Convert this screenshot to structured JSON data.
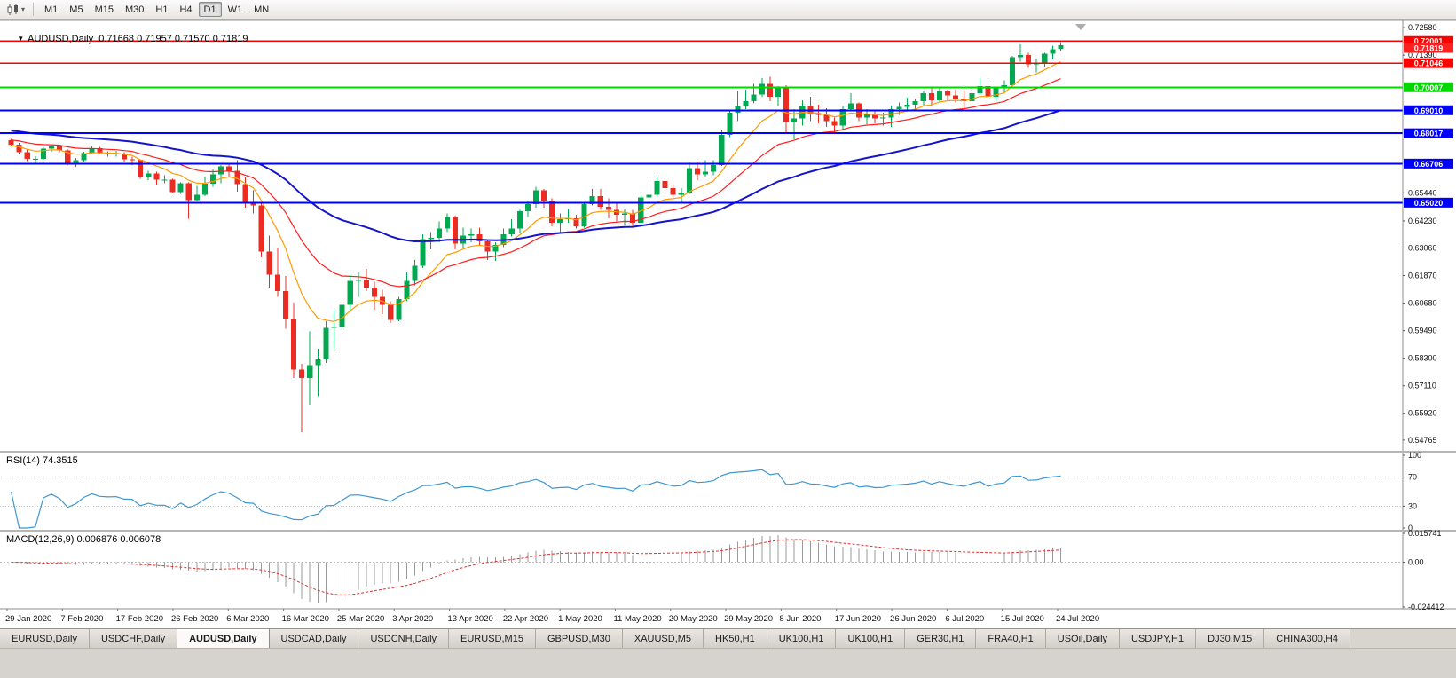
{
  "toolbar": {
    "dropdown_caret": "▾",
    "timeframes": [
      {
        "label": "M1",
        "active": false
      },
      {
        "label": "M5",
        "active": false
      },
      {
        "label": "M15",
        "active": false
      },
      {
        "label": "M30",
        "active": false
      },
      {
        "label": "H1",
        "active": false
      },
      {
        "label": "H4",
        "active": false
      },
      {
        "label": "D1",
        "active": true
      },
      {
        "label": "W1",
        "active": false
      },
      {
        "label": "MN",
        "active": false
      }
    ]
  },
  "chart": {
    "collapse_icon": "▼",
    "title": "AUDUSD,Daily",
    "ohlc_text": "0.71668 0.71957 0.71570 0.71819"
  },
  "rsi": {
    "label": "RSI(14) 74.3515"
  },
  "macd": {
    "label": "MACD(12,26,9) 0.006876 0.006078"
  },
  "tabs": [
    {
      "label": "EURUSD,Daily",
      "active": false
    },
    {
      "label": "USDCHF,Daily",
      "active": false
    },
    {
      "label": "AUDUSD,Daily",
      "active": true
    },
    {
      "label": "USDCAD,Daily",
      "active": false
    },
    {
      "label": "USDCNH,Daily",
      "active": false
    },
    {
      "label": "EURUSD,M15",
      "active": false
    },
    {
      "label": "GBPUSD,M30",
      "active": false
    },
    {
      "label": "XAUUSD,M5",
      "active": false
    },
    {
      "label": "HK50,H1",
      "active": false
    },
    {
      "label": "UK100,H1",
      "active": false
    },
    {
      "label": "UK100,H1",
      "active": false
    },
    {
      "label": "GER30,H1",
      "active": false
    },
    {
      "label": "FRA40,H1",
      "active": false
    },
    {
      "label": "USOil,Daily",
      "active": false
    },
    {
      "label": "USDJPY,H1",
      "active": false
    },
    {
      "label": "DJ30,M15",
      "active": false
    },
    {
      "label": "CHINA300,H4",
      "active": false
    }
  ],
  "chart_data": {
    "type": "candlestick",
    "symbol": "AUDUSD",
    "period": "Daily",
    "last_ohlc": {
      "open": 0.71668,
      "high": 0.71957,
      "low": 0.7157,
      "close": 0.71819
    },
    "y_range": [
      0.543,
      0.7293
    ],
    "up_color": "#00A850",
    "down_color": "#EB2C23",
    "price_axis_labels": [
      "0.72580",
      "0.71390",
      "0.65440",
      "0.64230",
      "0.63060",
      "0.61870",
      "0.60680",
      "0.59490",
      "0.58300",
      "0.57110",
      "0.55920",
      "0.54765"
    ],
    "x_labels": [
      "29 Jan 2020",
      "7 Feb 2020",
      "17 Feb 2020",
      "26 Feb 2020",
      "6 Mar 2020",
      "16 Mar 2020",
      "25 Mar 2020",
      "3 Apr 2020",
      "13 Apr 2020",
      "22 Apr 2020",
      "1 May 2020",
      "11 May 2020",
      "20 May 2020",
      "29 May 2020",
      "8 Jun 2020",
      "17 Jun 2020",
      "26 Jun 2020",
      "6 Jul 2020",
      "15 Jul 2020",
      "24 Jul 2020"
    ],
    "ohlc": [
      [
        0.6772,
        0.6778,
        0.6745,
        0.6753
      ],
      [
        0.6753,
        0.676,
        0.671,
        0.6719
      ],
      [
        0.6719,
        0.6733,
        0.6682,
        0.6691
      ],
      [
        0.6691,
        0.6703,
        0.667,
        0.6692
      ],
      [
        0.6692,
        0.674,
        0.6688,
        0.6735
      ],
      [
        0.6735,
        0.6752,
        0.6722,
        0.6745
      ],
      [
        0.6745,
        0.675,
        0.672,
        0.6728
      ],
      [
        0.6728,
        0.6733,
        0.6662,
        0.6671
      ],
      [
        0.6671,
        0.6695,
        0.6657,
        0.6685
      ],
      [
        0.6685,
        0.6722,
        0.6678,
        0.6716
      ],
      [
        0.6716,
        0.6745,
        0.671,
        0.6738
      ],
      [
        0.6738,
        0.6742,
        0.671,
        0.6717
      ],
      [
        0.6717,
        0.6723,
        0.67,
        0.6712
      ],
      [
        0.6712,
        0.6725,
        0.67,
        0.6714
      ],
      [
        0.6714,
        0.672,
        0.668,
        0.669
      ],
      [
        0.669,
        0.67,
        0.6665,
        0.6688
      ],
      [
        0.6688,
        0.669,
        0.6605,
        0.6611
      ],
      [
        0.6611,
        0.664,
        0.66,
        0.6627
      ],
      [
        0.6627,
        0.6635,
        0.658,
        0.6601
      ],
      [
        0.6601,
        0.662,
        0.6585,
        0.6601
      ],
      [
        0.6601,
        0.6605,
        0.6542,
        0.6548
      ],
      [
        0.6548,
        0.659,
        0.654,
        0.6586
      ],
      [
        0.6586,
        0.659,
        0.6433,
        0.6513
      ],
      [
        0.6513,
        0.6575,
        0.651,
        0.6536
      ],
      [
        0.6536,
        0.661,
        0.653,
        0.6583
      ],
      [
        0.6583,
        0.6645,
        0.657,
        0.6625
      ],
      [
        0.6625,
        0.6665,
        0.6585,
        0.6659
      ],
      [
        0.6659,
        0.667,
        0.661,
        0.6639
      ],
      [
        0.6639,
        0.6685,
        0.655,
        0.6581
      ],
      [
        0.6581,
        0.6615,
        0.648,
        0.65
      ],
      [
        0.65,
        0.6555,
        0.6455,
        0.6489
      ],
      [
        0.6489,
        0.65,
        0.6265,
        0.629
      ],
      [
        0.629,
        0.636,
        0.6135,
        0.619
      ],
      [
        0.619,
        0.6305,
        0.6095,
        0.612
      ],
      [
        0.612,
        0.6185,
        0.5958,
        0.5998
      ],
      [
        0.5998,
        0.607,
        0.5745,
        0.578
      ],
      [
        0.578,
        0.5805,
        0.551,
        0.5745
      ],
      [
        0.5745,
        0.5945,
        0.563,
        0.58
      ],
      [
        0.58,
        0.587,
        0.5665,
        0.5825
      ],
      [
        0.5825,
        0.599,
        0.581,
        0.596
      ],
      [
        0.596,
        0.6035,
        0.587,
        0.5965
      ],
      [
        0.5965,
        0.608,
        0.5945,
        0.606
      ],
      [
        0.606,
        0.6195,
        0.603,
        0.6165
      ],
      [
        0.6165,
        0.62,
        0.6095,
        0.617
      ],
      [
        0.617,
        0.6215,
        0.612,
        0.6135
      ],
      [
        0.6135,
        0.616,
        0.604,
        0.6095
      ],
      [
        0.6095,
        0.6125,
        0.602,
        0.606
      ],
      [
        0.606,
        0.6075,
        0.5982,
        0.5995
      ],
      [
        0.5995,
        0.6095,
        0.599,
        0.6085
      ],
      [
        0.6085,
        0.62,
        0.6075,
        0.6165
      ],
      [
        0.6165,
        0.6255,
        0.6145,
        0.623
      ],
      [
        0.623,
        0.6365,
        0.622,
        0.6345
      ],
      [
        0.6345,
        0.6375,
        0.63,
        0.635
      ],
      [
        0.635,
        0.642,
        0.633,
        0.639
      ],
      [
        0.639,
        0.6455,
        0.6375,
        0.644
      ],
      [
        0.644,
        0.6445,
        0.63,
        0.6325
      ],
      [
        0.6325,
        0.6395,
        0.6305,
        0.636
      ],
      [
        0.636,
        0.639,
        0.633,
        0.6365
      ],
      [
        0.6365,
        0.6395,
        0.632,
        0.6335
      ],
      [
        0.6335,
        0.634,
        0.6255,
        0.629
      ],
      [
        0.629,
        0.633,
        0.625,
        0.632
      ],
      [
        0.632,
        0.639,
        0.631,
        0.6365
      ],
      [
        0.6365,
        0.643,
        0.6355,
        0.639
      ],
      [
        0.639,
        0.647,
        0.637,
        0.6465
      ],
      [
        0.6465,
        0.651,
        0.644,
        0.6495
      ],
      [
        0.6495,
        0.657,
        0.648,
        0.6555
      ],
      [
        0.6555,
        0.656,
        0.648,
        0.651
      ],
      [
        0.651,
        0.652,
        0.64,
        0.6415
      ],
      [
        0.6415,
        0.6455,
        0.6372,
        0.643
      ],
      [
        0.643,
        0.6475,
        0.6415,
        0.6435
      ],
      [
        0.6435,
        0.645,
        0.639,
        0.64
      ],
      [
        0.64,
        0.65,
        0.6395,
        0.6495
      ],
      [
        0.6495,
        0.656,
        0.649,
        0.653
      ],
      [
        0.653,
        0.656,
        0.647,
        0.6485
      ],
      [
        0.6485,
        0.652,
        0.6435,
        0.647
      ],
      [
        0.647,
        0.6505,
        0.642,
        0.645
      ],
      [
        0.645,
        0.6475,
        0.6405,
        0.6455
      ],
      [
        0.6455,
        0.647,
        0.6402,
        0.6415
      ],
      [
        0.6415,
        0.6535,
        0.6412,
        0.6525
      ],
      [
        0.6525,
        0.6585,
        0.6505,
        0.6535
      ],
      [
        0.6535,
        0.6615,
        0.653,
        0.6595
      ],
      [
        0.6595,
        0.66,
        0.6545,
        0.6565
      ],
      [
        0.6565,
        0.658,
        0.6525,
        0.6535
      ],
      [
        0.6535,
        0.6565,
        0.6505,
        0.6545
      ],
      [
        0.6545,
        0.6675,
        0.654,
        0.665
      ],
      [
        0.665,
        0.668,
        0.66,
        0.6625
      ],
      [
        0.6625,
        0.6685,
        0.6615,
        0.6635
      ],
      [
        0.6635,
        0.6685,
        0.662,
        0.6665
      ],
      [
        0.6665,
        0.6815,
        0.666,
        0.6795
      ],
      [
        0.6795,
        0.69,
        0.6785,
        0.689
      ],
      [
        0.689,
        0.6985,
        0.6855,
        0.692
      ],
      [
        0.692,
        0.699,
        0.6905,
        0.694
      ],
      [
        0.694,
        0.7015,
        0.693,
        0.697
      ],
      [
        0.697,
        0.704,
        0.696,
        0.7015
      ],
      [
        0.7015,
        0.7045,
        0.694,
        0.696
      ],
      [
        0.696,
        0.7005,
        0.692,
        0.7
      ],
      [
        0.7,
        0.701,
        0.68,
        0.685
      ],
      [
        0.685,
        0.6905,
        0.6775,
        0.6865
      ],
      [
        0.6865,
        0.6945,
        0.6835,
        0.692
      ],
      [
        0.692,
        0.696,
        0.6855,
        0.6885
      ],
      [
        0.6885,
        0.6925,
        0.6845,
        0.688
      ],
      [
        0.688,
        0.691,
        0.683,
        0.6855
      ],
      [
        0.6855,
        0.687,
        0.6805,
        0.6835
      ],
      [
        0.6835,
        0.692,
        0.682,
        0.6905
      ],
      [
        0.6905,
        0.6975,
        0.69,
        0.693
      ],
      [
        0.693,
        0.6935,
        0.6855,
        0.687
      ],
      [
        0.687,
        0.6905,
        0.684,
        0.6885
      ],
      [
        0.6885,
        0.69,
        0.6845,
        0.6865
      ],
      [
        0.6865,
        0.689,
        0.6835,
        0.687
      ],
      [
        0.687,
        0.692,
        0.683,
        0.6905
      ],
      [
        0.6905,
        0.6935,
        0.688,
        0.6915
      ],
      [
        0.6915,
        0.6955,
        0.69,
        0.6925
      ],
      [
        0.6925,
        0.695,
        0.6905,
        0.694
      ],
      [
        0.694,
        0.6985,
        0.692,
        0.6975
      ],
      [
        0.6975,
        0.6995,
        0.692,
        0.6945
      ],
      [
        0.6945,
        0.7,
        0.6935,
        0.6985
      ],
      [
        0.6985,
        0.699,
        0.6945,
        0.6965
      ],
      [
        0.6965,
        0.699,
        0.6935,
        0.695
      ],
      [
        0.695,
        0.699,
        0.69,
        0.694
      ],
      [
        0.694,
        0.699,
        0.693,
        0.6975
      ],
      [
        0.6975,
        0.704,
        0.697,
        0.7005
      ],
      [
        0.7005,
        0.702,
        0.6955,
        0.696
      ],
      [
        0.696,
        0.7,
        0.694,
        0.6995
      ],
      [
        0.6995,
        0.703,
        0.6975,
        0.701
      ],
      [
        0.701,
        0.7135,
        0.7005,
        0.713
      ],
      [
        0.713,
        0.7185,
        0.711,
        0.714
      ],
      [
        0.714,
        0.715,
        0.7085,
        0.71
      ],
      [
        0.71,
        0.7125,
        0.7065,
        0.7105
      ],
      [
        0.7105,
        0.715,
        0.709,
        0.7145
      ],
      [
        0.7145,
        0.718,
        0.712,
        0.7165
      ],
      [
        0.71668,
        0.71957,
        0.7157,
        0.71819
      ]
    ],
    "moving_averages": [
      {
        "period": 9,
        "type": "ema",
        "color": "#FF9A00",
        "width": 1.2,
        "seed": 0.6748
      },
      {
        "period": 21,
        "type": "ema",
        "color": "#FF1E1E",
        "width": 1.2,
        "seed": 0.6775
      },
      {
        "period": 50,
        "type": "ema",
        "color": "#1414CC",
        "width": 2,
        "seed": 0.6815
      }
    ],
    "levels": [
      {
        "value": 0.72001,
        "label": "0.72001",
        "color": "#FF0000",
        "width": 1.6
      },
      {
        "value": 0.71046,
        "label": "0.71046",
        "color": "#FF0000",
        "width": 1.6
      },
      {
        "value": 0.70007,
        "label": "0.70007",
        "color": "#00D800",
        "width": 2
      },
      {
        "value": 0.6901,
        "label": "0.69010",
        "color": "#0000FF",
        "width": 2
      },
      {
        "value": 0.68017,
        "label": "0.68017",
        "color": "#0000FF",
        "width": 2
      },
      {
        "value": 0.66706,
        "label": "0.66706",
        "color": "#0000FF",
        "width": 2
      },
      {
        "value": 0.6502,
        "label": "0.65020",
        "color": "#0000FF",
        "width": 2
      }
    ],
    "bid": {
      "value": 0.71819,
      "label": "0.71819",
      "color": "#FF2020"
    },
    "rsi": {
      "period": 14,
      "value": 74.3515,
      "color": "#3E97D1",
      "levels": [
        70,
        30
      ],
      "range": [
        0,
        100
      ],
      "axis_labels": [
        "100",
        "70",
        "30",
        "0"
      ]
    },
    "macd": {
      "fast": 12,
      "slow": 26,
      "signal": 9,
      "value": 0.006876,
      "signal_value": 0.006078,
      "range": [
        -0.024412,
        0.015741
      ],
      "histogram_color": "#9A9A9A",
      "signal_color": "#E03131",
      "axis_labels": [
        "0.015741",
        "0.00",
        "-0.024412"
      ]
    }
  }
}
